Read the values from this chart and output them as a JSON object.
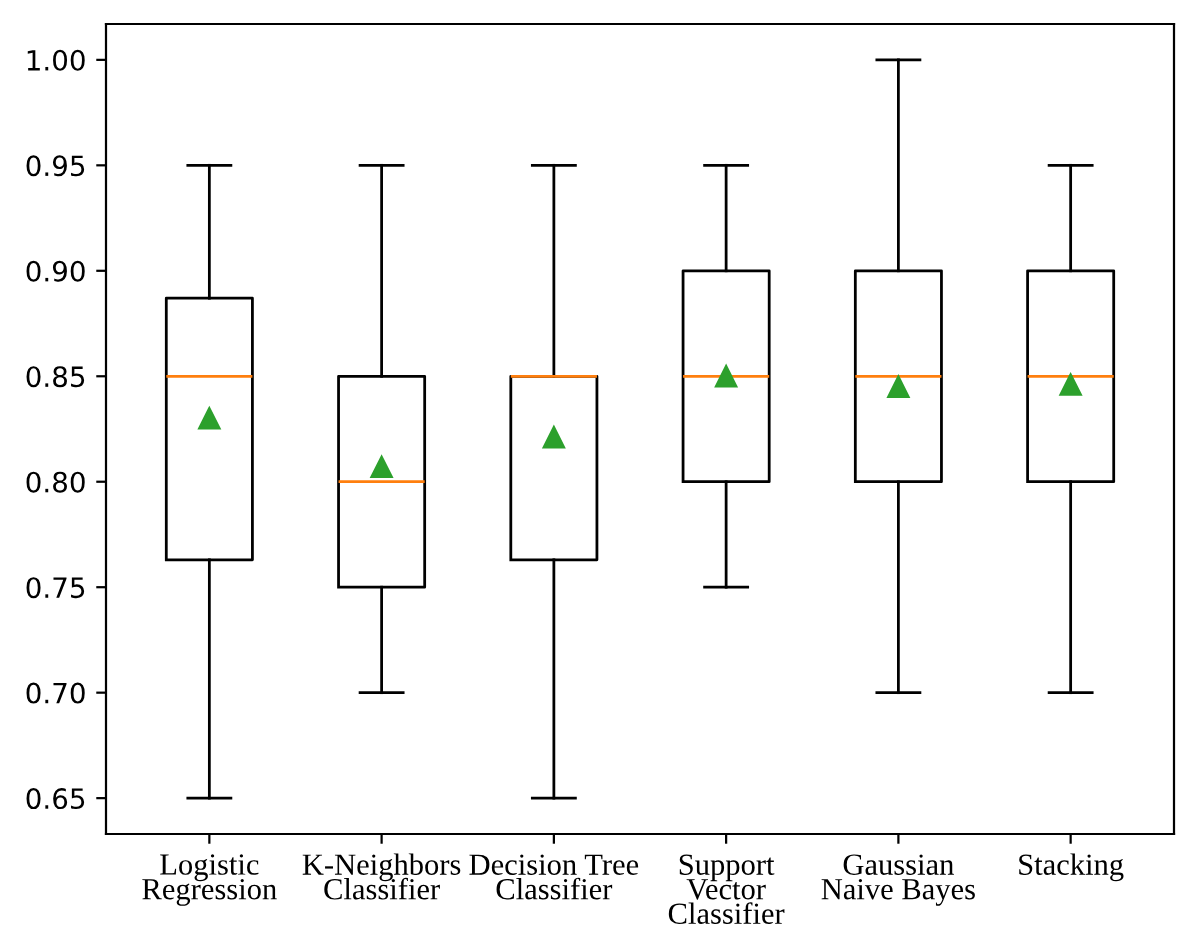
{
  "chart_data": {
    "type": "box",
    "categories": [
      "Logistic\nRegression",
      "K-Neighbors\nClassifier",
      "Decision Tree\nClassifier",
      "Support\nVector\nClassifier",
      "Gaussian\nNaive Bayes",
      "Stacking"
    ],
    "boxes": [
      {
        "low": 0.65,
        "q1": 0.763,
        "median": 0.85,
        "q3": 0.887,
        "high": 0.95,
        "mean": 0.83
      },
      {
        "low": 0.7,
        "q1": 0.75,
        "median": 0.8,
        "q3": 0.85,
        "high": 0.95,
        "mean": 0.807
      },
      {
        "low": 0.65,
        "q1": 0.763,
        "median": 0.85,
        "q3": 0.85,
        "high": 0.95,
        "mean": 0.821
      },
      {
        "low": 0.75,
        "q1": 0.8,
        "median": 0.85,
        "q3": 0.9,
        "high": 0.95,
        "mean": 0.85
      },
      {
        "low": 0.7,
        "q1": 0.8,
        "median": 0.85,
        "q3": 0.9,
        "high": 1.0,
        "mean": 0.845
      },
      {
        "low": 0.7,
        "q1": 0.8,
        "median": 0.85,
        "q3": 0.9,
        "high": 0.95,
        "mean": 0.846
      }
    ],
    "ylim": [
      0.633,
      1.017
    ],
    "yticks": [
      {
        "value": 0.65,
        "label": "0.65"
      },
      {
        "value": 0.7,
        "label": "0.70"
      },
      {
        "value": 0.75,
        "label": "0.75"
      },
      {
        "value": 0.8,
        "label": "0.80"
      },
      {
        "value": 0.85,
        "label": "0.85"
      },
      {
        "value": 0.9,
        "label": "0.90"
      },
      {
        "value": 0.95,
        "label": "0.95"
      },
      {
        "value": 1.0,
        "label": "1.00"
      }
    ],
    "grid": false
  }
}
